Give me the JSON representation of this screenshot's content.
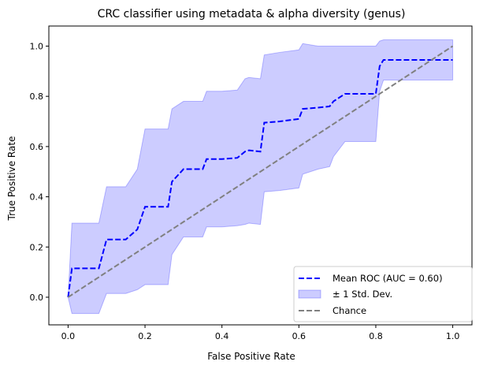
{
  "chart_data": {
    "type": "line",
    "title": "CRC classifier using metadata & alpha diversity (genus)",
    "xlabel": "False Positive Rate",
    "ylabel": "True Positive Rate",
    "xlim": [
      -0.05,
      1.05
    ],
    "ylim": [
      -0.11,
      1.08
    ],
    "grid": false,
    "legend_position": "lower right",
    "x_ticks": [
      "0.0",
      "0.2",
      "0.4",
      "0.6",
      "0.8",
      "1.0"
    ],
    "y_ticks": [
      "0.0",
      "0.2",
      "0.4",
      "0.6",
      "0.8",
      "1.0"
    ],
    "series": [
      {
        "name": "Mean ROC (AUC = 0.60)",
        "kind": "line",
        "style": "dashed",
        "color": "#0000ff",
        "x": [
          0.0,
          0.01,
          0.08,
          0.1,
          0.15,
          0.18,
          0.2,
          0.26,
          0.27,
          0.3,
          0.35,
          0.36,
          0.38,
          0.4,
          0.44,
          0.46,
          0.47,
          0.5,
          0.51,
          0.55,
          0.6,
          0.61,
          0.65,
          0.68,
          0.69,
          0.72,
          0.8,
          0.81,
          0.82,
          1.0
        ],
        "y": [
          0.0,
          0.115,
          0.115,
          0.23,
          0.23,
          0.27,
          0.36,
          0.36,
          0.46,
          0.51,
          0.51,
          0.55,
          0.55,
          0.55,
          0.555,
          0.58,
          0.585,
          0.58,
          0.695,
          0.7,
          0.71,
          0.75,
          0.755,
          0.76,
          0.78,
          0.81,
          0.81,
          0.92,
          0.945,
          0.945
        ]
      },
      {
        "name": "± 1 Std. Dev.",
        "kind": "band",
        "color": "#0000ff",
        "opacity": 0.2,
        "x": [
          0.0,
          0.01,
          0.08,
          0.1,
          0.15,
          0.18,
          0.2,
          0.26,
          0.27,
          0.3,
          0.35,
          0.36,
          0.38,
          0.4,
          0.44,
          0.46,
          0.47,
          0.5,
          0.51,
          0.55,
          0.6,
          0.61,
          0.65,
          0.68,
          0.69,
          0.72,
          0.8,
          0.81,
          0.82,
          1.0
        ],
        "upper": [
          0.0,
          0.295,
          0.295,
          0.44,
          0.44,
          0.51,
          0.67,
          0.67,
          0.75,
          0.78,
          0.78,
          0.82,
          0.82,
          0.82,
          0.825,
          0.87,
          0.875,
          0.87,
          0.965,
          0.975,
          0.985,
          1.01,
          1.0,
          1.0,
          1.0,
          1.0,
          1.0,
          1.02,
          1.025,
          1.025
        ],
        "lower": [
          0.0,
          -0.065,
          -0.065,
          0.015,
          0.015,
          0.03,
          0.05,
          0.05,
          0.17,
          0.24,
          0.24,
          0.28,
          0.28,
          0.28,
          0.285,
          0.29,
          0.295,
          0.29,
          0.42,
          0.425,
          0.435,
          0.49,
          0.51,
          0.52,
          0.56,
          0.62,
          0.62,
          0.82,
          0.865,
          0.865
        ]
      },
      {
        "name": "Chance",
        "kind": "line",
        "style": "dashed",
        "color": "#808080",
        "x": [
          0.0,
          1.0
        ],
        "y": [
          0.0,
          1.0
        ]
      }
    ]
  }
}
